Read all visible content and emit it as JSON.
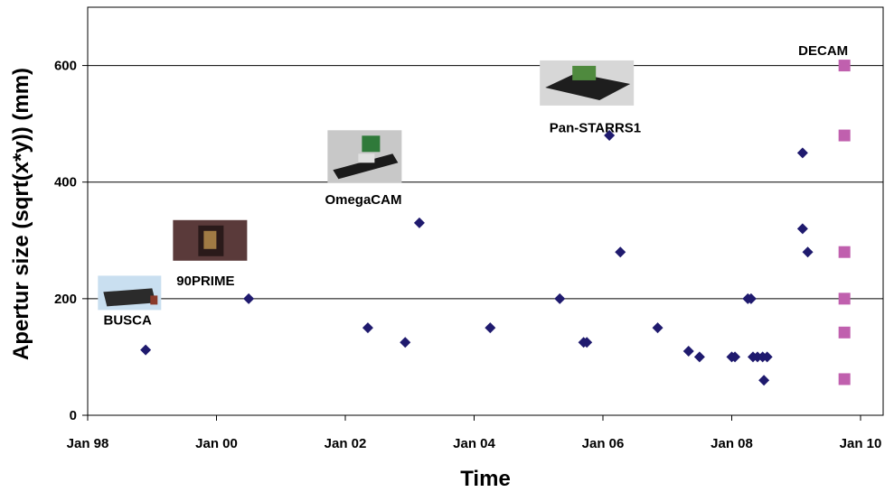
{
  "chart_data": {
    "type": "scatter",
    "title": "",
    "xlabel": "Time",
    "ylabel": "Apertur size (sqrt(x*y)) (mm)",
    "xlim": [
      1998.0,
      2010.0
    ],
    "ylim": [
      0,
      700
    ],
    "grid": "horizontal",
    "x_ticks": [
      {
        "value": 1998,
        "label": "Jan 98"
      },
      {
        "value": 2000,
        "label": "Jan 00"
      },
      {
        "value": 2002,
        "label": "Jan 02"
      },
      {
        "value": 2004,
        "label": "Jan 04"
      },
      {
        "value": 2006,
        "label": "Jan 06"
      },
      {
        "value": 2008,
        "label": "Jan 08"
      },
      {
        "value": 2010,
        "label": "Jan 10"
      }
    ],
    "y_ticks": [
      0,
      200,
      400,
      600
    ],
    "series": [
      {
        "marker": "diamond",
        "color": "#1f1a6e",
        "points": [
          {
            "x": 1998.9,
            "y": 112
          },
          {
            "x": 2000.5,
            "y": 200
          },
          {
            "x": 2002.35,
            "y": 150
          },
          {
            "x": 2002.93,
            "y": 125
          },
          {
            "x": 2003.15,
            "y": 330
          },
          {
            "x": 2004.25,
            "y": 150
          },
          {
            "x": 2005.33,
            "y": 200
          },
          {
            "x": 2005.7,
            "y": 125
          },
          {
            "x": 2005.75,
            "y": 125
          },
          {
            "x": 2006.1,
            "y": 480
          },
          {
            "x": 2006.27,
            "y": 280
          },
          {
            "x": 2006.85,
            "y": 150
          },
          {
            "x": 2007.33,
            "y": 110
          },
          {
            "x": 2007.5,
            "y": 100
          },
          {
            "x": 2008.0,
            "y": 100
          },
          {
            "x": 2008.05,
            "y": 100
          },
          {
            "x": 2008.25,
            "y": 200
          },
          {
            "x": 2008.3,
            "y": 200
          },
          {
            "x": 2008.33,
            "y": 100
          },
          {
            "x": 2008.4,
            "y": 100
          },
          {
            "x": 2008.48,
            "y": 100
          },
          {
            "x": 2008.5,
            "y": 60
          },
          {
            "x": 2008.55,
            "y": 100
          },
          {
            "x": 2009.1,
            "y": 450
          },
          {
            "x": 2009.1,
            "y": 320
          },
          {
            "x": 2009.18,
            "y": 280
          }
        ]
      },
      {
        "marker": "square",
        "color": "#c060ae",
        "points": [
          {
            "x": 2009.75,
            "y": 600
          },
          {
            "x": 2009.75,
            "y": 480
          },
          {
            "x": 2009.75,
            "y": 280
          },
          {
            "x": 2009.75,
            "y": 200
          },
          {
            "x": 2009.75,
            "y": 142
          },
          {
            "x": 2009.75,
            "y": 62
          }
        ]
      }
    ],
    "annotations": [
      {
        "text": "BUSCA",
        "x": 1998.62,
        "y": 163
      },
      {
        "text": "90PRIME",
        "x": 1999.83,
        "y": 231
      },
      {
        "text": "OmegaCAM",
        "x": 2002.28,
        "y": 370
      },
      {
        "text": "Pan-STARRS1",
        "x": 2005.88,
        "y": 493
      },
      {
        "text": "DECAM",
        "x": 2009.42,
        "y": 626
      }
    ],
    "thumbnails": [
      {
        "name": "busca-photo",
        "x": 1998.65,
        "y": 210
      },
      {
        "name": "90prime-photo",
        "x": 1999.9,
        "y": 300
      },
      {
        "name": "omegacam-photo",
        "x": 2002.3,
        "y": 444
      },
      {
        "name": "pan-starrs1-photo",
        "x": 2005.75,
        "y": 570
      }
    ]
  }
}
